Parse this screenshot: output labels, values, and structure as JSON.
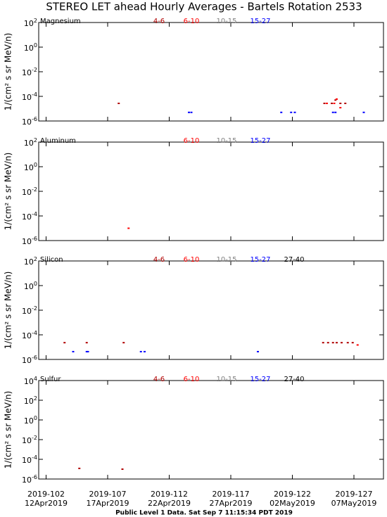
{
  "title": "STEREO LET ahead Hourly Averages - Bartels Rotation 2533",
  "footer": "Public Level 1 Data. Sat Sep  7 11:15:34 PDT 2019",
  "chart_data": [
    {
      "type": "scatter",
      "panel_label": "Magnesium",
      "y_label": "1/(cm² s sr MeV/n)",
      "log_y": true,
      "xlim": [
        101.4,
        129.4
      ],
      "ylim": [
        1e-06,
        100
      ],
      "yticks": [
        {
          "value": 100,
          "label": "10",
          "exponent": "2"
        },
        {
          "value": 1,
          "label": "10",
          "exponent": "0"
        },
        {
          "value": 0.01,
          "label": "10",
          "exponent": "-2"
        },
        {
          "value": 0.0001,
          "label": "10",
          "exponent": "-4"
        },
        {
          "value": 1e-06,
          "label": "10",
          "exponent": "-6"
        }
      ],
      "series": [
        {
          "name": "4-6",
          "color": "#b00000",
          "x": [
            107.9,
            124.6,
            125.2,
            125.5,
            125.9,
            126.3
          ],
          "values": [
            2.7e-05,
            2.7e-05,
            2.7e-05,
            5e-05,
            2.7e-05,
            2.7e-05
          ]
        },
        {
          "name": "6-10",
          "color": "#ff0000",
          "x": [
            124.8,
            125.4,
            125.6,
            125.9
          ],
          "values": [
            2.7e-05,
            2.7e-05,
            6e-05,
            1.2e-05
          ]
        },
        {
          "name": "10-15",
          "color": "#808080",
          "x": [],
          "values": []
        },
        {
          "name": "15-27",
          "color": "#0000ff",
          "x": [
            113.6,
            113.8,
            121.1,
            121.9,
            122.2,
            125.3,
            125.5,
            127.8
          ],
          "values": [
            5e-06,
            5e-06,
            5e-06,
            5e-06,
            5e-06,
            5e-06,
            5e-06,
            5e-06
          ]
        }
      ]
    },
    {
      "type": "scatter",
      "panel_label": "Aluminum",
      "y_label": "1/(cm² s sr MeV/n)",
      "log_y": true,
      "xlim": [
        101.4,
        129.4
      ],
      "ylim": [
        1e-06,
        100
      ],
      "yticks": [
        {
          "value": 100,
          "label": "10",
          "exponent": "2"
        },
        {
          "value": 1,
          "label": "10",
          "exponent": "0"
        },
        {
          "value": 0.01,
          "label": "10",
          "exponent": "-2"
        },
        {
          "value": 0.0001,
          "label": "10",
          "exponent": "-4"
        },
        {
          "value": 1e-06,
          "label": "10",
          "exponent": "-6"
        }
      ],
      "series": [
        {
          "name": "6-10",
          "color": "#ff0000",
          "x": [
            108.7
          ],
          "values": [
            1e-05
          ]
        },
        {
          "name": "10-15",
          "color": "#808080",
          "x": [],
          "values": []
        },
        {
          "name": "15-27",
          "color": "#0000ff",
          "x": [],
          "values": []
        }
      ]
    },
    {
      "type": "scatter",
      "panel_label": "Silicon",
      "y_label": "1/(cm² s sr MeV/n)",
      "log_y": true,
      "xlim": [
        101.4,
        129.4
      ],
      "ylim": [
        1e-06,
        100
      ],
      "yticks": [
        {
          "value": 100,
          "label": "10",
          "exponent": "2"
        },
        {
          "value": 1,
          "label": "10",
          "exponent": "0"
        },
        {
          "value": 0.01,
          "label": "10",
          "exponent": "-2"
        },
        {
          "value": 0.0001,
          "label": "10",
          "exponent": "-4"
        },
        {
          "value": 1e-06,
          "label": "10",
          "exponent": "-6"
        }
      ],
      "series": [
        {
          "name": "4-6",
          "color": "#b00000",
          "x": [
            103.5,
            105.3,
            108.3,
            124.5,
            124.9,
            125.3,
            125.6,
            126.0,
            126.5,
            126.9
          ],
          "values": [
            2.3e-05,
            2.3e-05,
            2.3e-05,
            2.3e-05,
            2.3e-05,
            2.3e-05,
            2.3e-05,
            2.3e-05,
            2.3e-05,
            2.3e-05
          ]
        },
        {
          "name": "6-10",
          "color": "#ff0000",
          "x": [
            127.3
          ],
          "values": [
            1.5e-05
          ]
        },
        {
          "name": "10-15",
          "color": "#808080",
          "x": [],
          "values": []
        },
        {
          "name": "15-27",
          "color": "#0000ff",
          "x": [
            104.2,
            105.3,
            105.4,
            109.7,
            110.0,
            119.2
          ],
          "values": [
            4.3e-06,
            4.3e-06,
            4.3e-06,
            4.3e-06,
            4.3e-06,
            4.3e-06
          ]
        },
        {
          "name": "27-40",
          "color": "#000000",
          "x": [],
          "values": []
        }
      ]
    },
    {
      "type": "scatter",
      "panel_label": "Sulfur",
      "y_label": "1/(cm² s sr MeV/n)",
      "log_y": true,
      "xlim": [
        101.4,
        129.4
      ],
      "ylim": [
        1e-06,
        10000
      ],
      "yticks": [
        {
          "value": 10000,
          "label": "10",
          "exponent": "4"
        },
        {
          "value": 100,
          "label": "10",
          "exponent": "2"
        },
        {
          "value": 1,
          "label": "10",
          "exponent": "0"
        },
        {
          "value": 0.01,
          "label": "10",
          "exponent": "-2"
        },
        {
          "value": 0.0001,
          "label": "10",
          "exponent": "-4"
        },
        {
          "value": 1e-06,
          "label": "10",
          "exponent": "-6"
        }
      ],
      "xticks": [
        {
          "value": 102,
          "label": "2019-102"
        },
        {
          "value": 107,
          "label": "2019-107"
        },
        {
          "value": 112,
          "label": "2019-112"
        },
        {
          "value": 117,
          "label": "2019-117"
        },
        {
          "value": 122,
          "label": "2019-122"
        },
        {
          "value": 127,
          "label": "2019-127"
        }
      ],
      "xtick_dates": [
        "12Apr2019",
        "17Apr2019",
        "22Apr2019",
        "27Apr2019",
        "02May2019",
        "07May2019"
      ],
      "series": [
        {
          "name": "4-6",
          "color": "#b00000",
          "x": [
            104.7,
            108.2
          ],
          "values": [
            1.2e-05,
            1e-05
          ]
        },
        {
          "name": "6-10",
          "color": "#ff0000",
          "x": [],
          "values": []
        },
        {
          "name": "10-15",
          "color": "#808080",
          "x": [],
          "values": []
        },
        {
          "name": "15-27",
          "color": "#0000ff",
          "x": [],
          "values": []
        },
        {
          "name": "27-40",
          "color": "#000000",
          "x": [],
          "values": []
        }
      ]
    }
  ]
}
